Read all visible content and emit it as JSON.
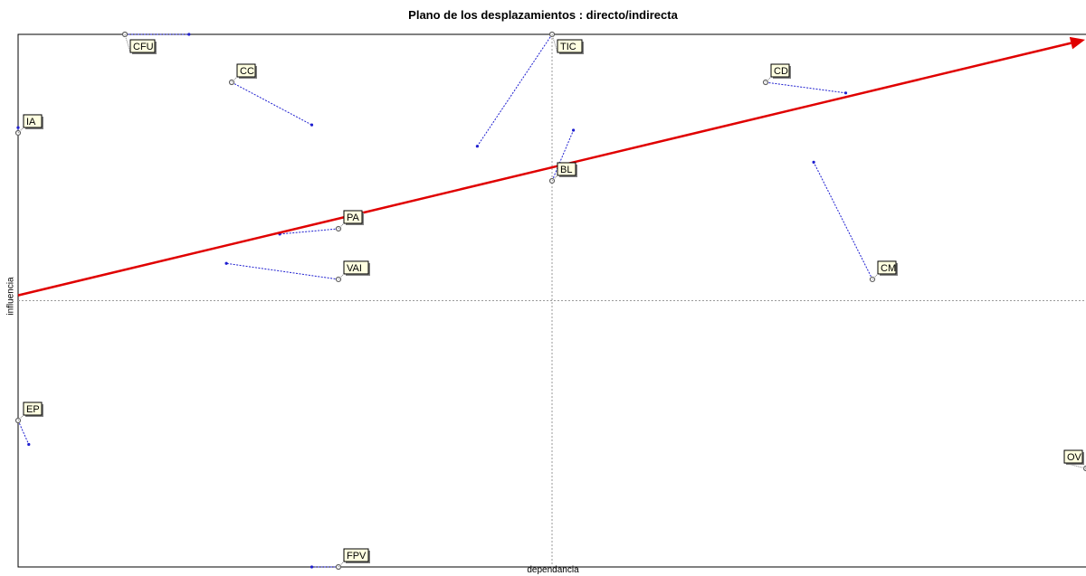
{
  "chart_data": {
    "type": "scatter",
    "title": "Plano de los desplazamientos :  directo/indirecta",
    "xlabel": "dependancia",
    "ylabel": "influencia",
    "xlim": [
      0,
      2
    ],
    "ylim": [
      0,
      2
    ],
    "grid": false,
    "reference_lines": {
      "x": 1.0,
      "y": 1.0
    },
    "trend_arrow": {
      "from": [
        0.0,
        1.02
      ],
      "to": [
        2.0,
        1.98
      ],
      "color": "#e00000"
    },
    "points": [
      {
        "name": "CFU",
        "direct": [
          0.2,
          2.0
        ],
        "indirect": [
          0.32,
          2.0
        ]
      },
      {
        "name": "CC",
        "direct": [
          0.4,
          1.82
        ],
        "indirect": [
          0.55,
          1.66
        ]
      },
      {
        "name": "IA",
        "direct": [
          0.0,
          1.63
        ],
        "indirect": [
          0.0,
          1.65
        ]
      },
      {
        "name": "TIC",
        "direct": [
          1.0,
          2.0
        ],
        "indirect": [
          0.86,
          1.58
        ]
      },
      {
        "name": "CD",
        "direct": [
          1.4,
          1.82
        ],
        "indirect": [
          1.55,
          1.78
        ]
      },
      {
        "name": "BL",
        "direct": [
          1.0,
          1.45
        ],
        "indirect": [
          1.04,
          1.64
        ]
      },
      {
        "name": "PA",
        "direct": [
          0.6,
          1.27
        ],
        "indirect": [
          0.49,
          1.25
        ]
      },
      {
        "name": "VAI",
        "direct": [
          0.6,
          1.08
        ],
        "indirect": [
          0.39,
          1.14
        ]
      },
      {
        "name": "CM",
        "direct": [
          1.6,
          1.08
        ],
        "indirect": [
          1.49,
          1.52
        ]
      },
      {
        "name": "EP",
        "direct": [
          0.0,
          0.55
        ],
        "indirect": [
          0.02,
          0.46
        ]
      },
      {
        "name": "OV",
        "direct": [
          2.0,
          0.37
        ],
        "indirect": [
          2.0,
          0.37
        ]
      },
      {
        "name": "FPV",
        "direct": [
          0.6,
          0.0
        ],
        "indirect": [
          0.55,
          0.0
        ]
      }
    ]
  },
  "colors": {
    "move_line": "#1f1fd0",
    "indirect_dot": "#1f1fd0",
    "direct_marker": "#606060",
    "axis_ref": "#9a9a9a",
    "frame": "#000000"
  }
}
